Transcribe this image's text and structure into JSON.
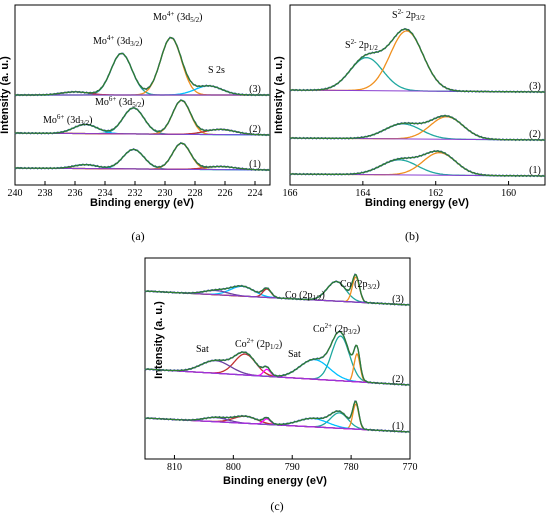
{
  "chart_data": [
    {
      "type": "line",
      "panel": "(a)",
      "xlabel": "Binding energy (eV)",
      "ylabel": "Intensity (a. u.)",
      "xlim": [
        240,
        223
      ],
      "xticks": [
        240,
        238,
        236,
        234,
        232,
        230,
        228,
        226,
        224
      ],
      "annotations": [
        {
          "main": "Mo",
          "sup": "4+",
          "rest": " (3d",
          "sub": "3/2",
          "end": ")"
        },
        {
          "main": "Mo",
          "sup": "4+",
          "rest": " (3d",
          "sub": "5/2",
          "end": ")"
        },
        {
          "main": "S 2s",
          "sup": "",
          "rest": "",
          "sub": "",
          "end": ""
        },
        {
          "main": "Mo",
          "sup": "6+",
          "rest": " (3d",
          "sub": "5/2",
          "end": ")"
        },
        {
          "main": "Mo",
          "sup": "6+",
          "rest": " (3d",
          "sub": "3/2",
          "end": ")"
        }
      ],
      "traces": [
        "(3)",
        "(2)",
        "(1)"
      ],
      "series": [
        {
          "trace": "(3)",
          "offset": 2.0,
          "peaks": [
            [
              232.9,
              1.6,
              0.7
            ],
            [
              229.6,
              2.2,
              0.7
            ],
            [
              227.1,
              0.35,
              0.9
            ],
            [
              236.0,
              0.12,
              0.9
            ]
          ]
        },
        {
          "trace": "(2)",
          "offset": 1.0,
          "peaks": [
            [
              232.1,
              1.0,
              0.7
            ],
            [
              228.9,
              1.3,
              0.6
            ],
            [
              235.3,
              0.35,
              0.8
            ],
            [
              226.3,
              0.2,
              1.0
            ]
          ]
        },
        {
          "trace": "(1)",
          "offset": 0.0,
          "peaks": [
            [
              232.1,
              0.75,
              0.7
            ],
            [
              228.9,
              1.0,
              0.6
            ],
            [
              235.3,
              0.15,
              0.8
            ],
            [
              226.3,
              0.12,
              1.0
            ]
          ]
        }
      ]
    },
    {
      "type": "line",
      "panel": "(b)",
      "xlabel": "Binding energy (eV)",
      "ylabel": "Intensity (a. u.)",
      "xlim": [
        166,
        159
      ],
      "xticks": [
        166,
        164,
        162,
        160
      ],
      "annotations": [
        {
          "main": "S",
          "sup": "2-",
          "rest": " 2p",
          "sub": "1/2",
          "end": ""
        },
        {
          "main": "S",
          "sup": "2-",
          "rest": " 2p",
          "sub": "3/2",
          "end": ""
        }
      ],
      "traces": [
        "(3)",
        "(2)",
        "(1)"
      ],
      "series": [
        {
          "trace": "(3)",
          "offset": 2.0,
          "peaks": [
            [
              163.9,
              1.1,
              0.45
            ],
            [
              162.8,
              2.0,
              0.45
            ]
          ]
        },
        {
          "trace": "(2)",
          "offset": 1.0,
          "peaks": [
            [
              162.9,
              0.5,
              0.5
            ],
            [
              161.7,
              0.75,
              0.45
            ]
          ]
        },
        {
          "trace": "(1)",
          "offset": 0.0,
          "peaks": [
            [
              163.0,
              0.5,
              0.5
            ],
            [
              161.9,
              0.75,
              0.45
            ]
          ]
        }
      ]
    },
    {
      "type": "line",
      "panel": "(c)",
      "xlabel": "Binding energy (eV)",
      "ylabel": "Intensity (a. u.)",
      "xlim": [
        815,
        770
      ],
      "xticks": [
        810,
        800,
        790,
        780,
        770
      ],
      "annotations": [
        {
          "main": "Co (2p",
          "sup": "",
          "rest": "",
          "sub": "1/2",
          "end": ")"
        },
        {
          "main": "Co (2p",
          "sup": "",
          "rest": "",
          "sub": "3/2",
          "end": ")"
        },
        {
          "main": "Sat",
          "sup": "",
          "rest": "",
          "sub": "",
          "end": ""
        },
        {
          "main": "Co",
          "sup": "2+",
          "rest": " (2p",
          "sub": "1/2",
          "end": ")"
        },
        {
          "main": "Sat",
          "sup": "",
          "rest": "",
          "sub": "",
          "end": ""
        },
        {
          "main": "Co",
          "sup": "2+",
          "rest": " (2p",
          "sub": "3/2",
          "end": ")"
        }
      ],
      "traces": [
        "(3)",
        "(2)",
        "(1)"
      ],
      "series": [
        {
          "trace": "(3)",
          "offset": 2.0,
          "peaks": [
            [
              782.5,
              0.7,
              1.6
            ],
            [
              779.2,
              0.9,
              0.6
            ],
            [
              798.5,
              0.35,
              2.0
            ],
            [
              794.3,
              0.3,
              0.7
            ],
            [
              803.0,
              0.15,
              2.0
            ]
          ]
        },
        {
          "trace": "(2)",
          "offset": 1.0,
          "peaks": [
            [
              781.8,
              1.6,
              1.5
            ],
            [
              779.0,
              1.0,
              0.5
            ],
            [
              786.2,
              0.7,
              2.5
            ],
            [
              798.0,
              0.75,
              1.8
            ],
            [
              803.0,
              0.45,
              2.5
            ],
            [
              794.3,
              0.25,
              0.6
            ]
          ]
        },
        {
          "trace": "(1)",
          "offset": 0.0,
          "peaks": [
            [
              782.0,
              0.55,
              1.5
            ],
            [
              779.2,
              0.9,
              0.5
            ],
            [
              786.5,
              0.3,
              2.5
            ],
            [
              798.0,
              0.25,
              2.0
            ],
            [
              803.0,
              0.15,
              2.0
            ],
            [
              794.3,
              0.2,
              0.6
            ]
          ]
        }
      ]
    }
  ]
}
